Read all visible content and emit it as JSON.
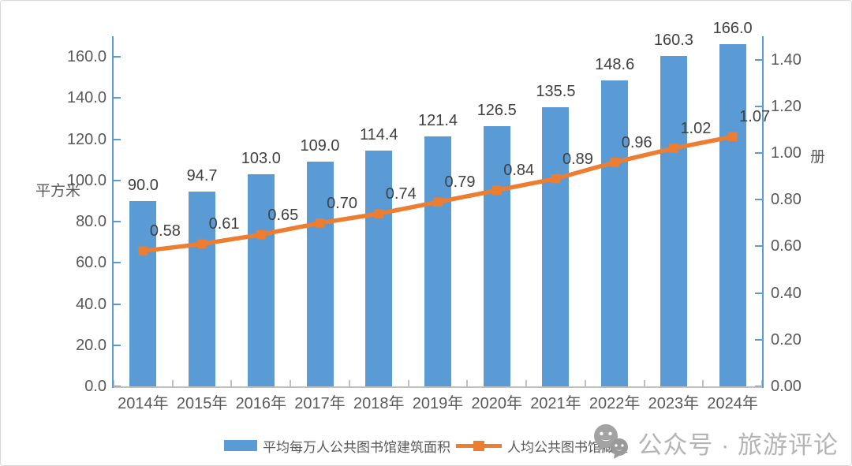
{
  "chart_data": {
    "type": "bar",
    "subtype": "combo-bar-line-dual-axis",
    "title": "",
    "categories": [
      "2014年",
      "2015年",
      "2016年",
      "2017年",
      "2018年",
      "2019年",
      "2020年",
      "2021年",
      "2022年",
      "2023年",
      "2024年"
    ],
    "series": [
      {
        "name": "平均每万人公共图书馆建筑面积",
        "type": "bar",
        "axis": "left",
        "color": "#5B9BD5",
        "values": [
          90.0,
          94.7,
          103.0,
          109.0,
          114.4,
          121.4,
          126.5,
          135.5,
          148.6,
          160.3,
          166.0
        ],
        "label_decimals": 1
      },
      {
        "name": "人均公共图书馆藏量",
        "type": "line",
        "axis": "right",
        "color": "#ED7D31",
        "values": [
          0.58,
          0.61,
          0.65,
          0.7,
          0.74,
          0.79,
          0.84,
          0.89,
          0.96,
          1.02,
          1.07
        ],
        "label_decimals": 2
      }
    ],
    "left_axis": {
      "label": "平方米",
      "min": 0,
      "max": 170,
      "tick_interval": 20,
      "decimals": 1
    },
    "right_axis": {
      "label": "册",
      "min": 0,
      "max": 1.5,
      "tick_interval": 0.2,
      "decimals": 2
    },
    "legend_position": "bottom",
    "grid": false
  },
  "watermark": {
    "text": "公众号 · 旅游评论",
    "icon": "wechat-icon"
  },
  "colors": {
    "bar": "#5B9BD5",
    "line": "#ED7D31",
    "y_axis_line": "#5B9BD5",
    "x_axis_line": "#BFBFBF",
    "tick_text": "#595959",
    "data_label": "#404040",
    "watermark_text": "#b4b4b4",
    "watermark_icon": "#a3a3a3"
  }
}
